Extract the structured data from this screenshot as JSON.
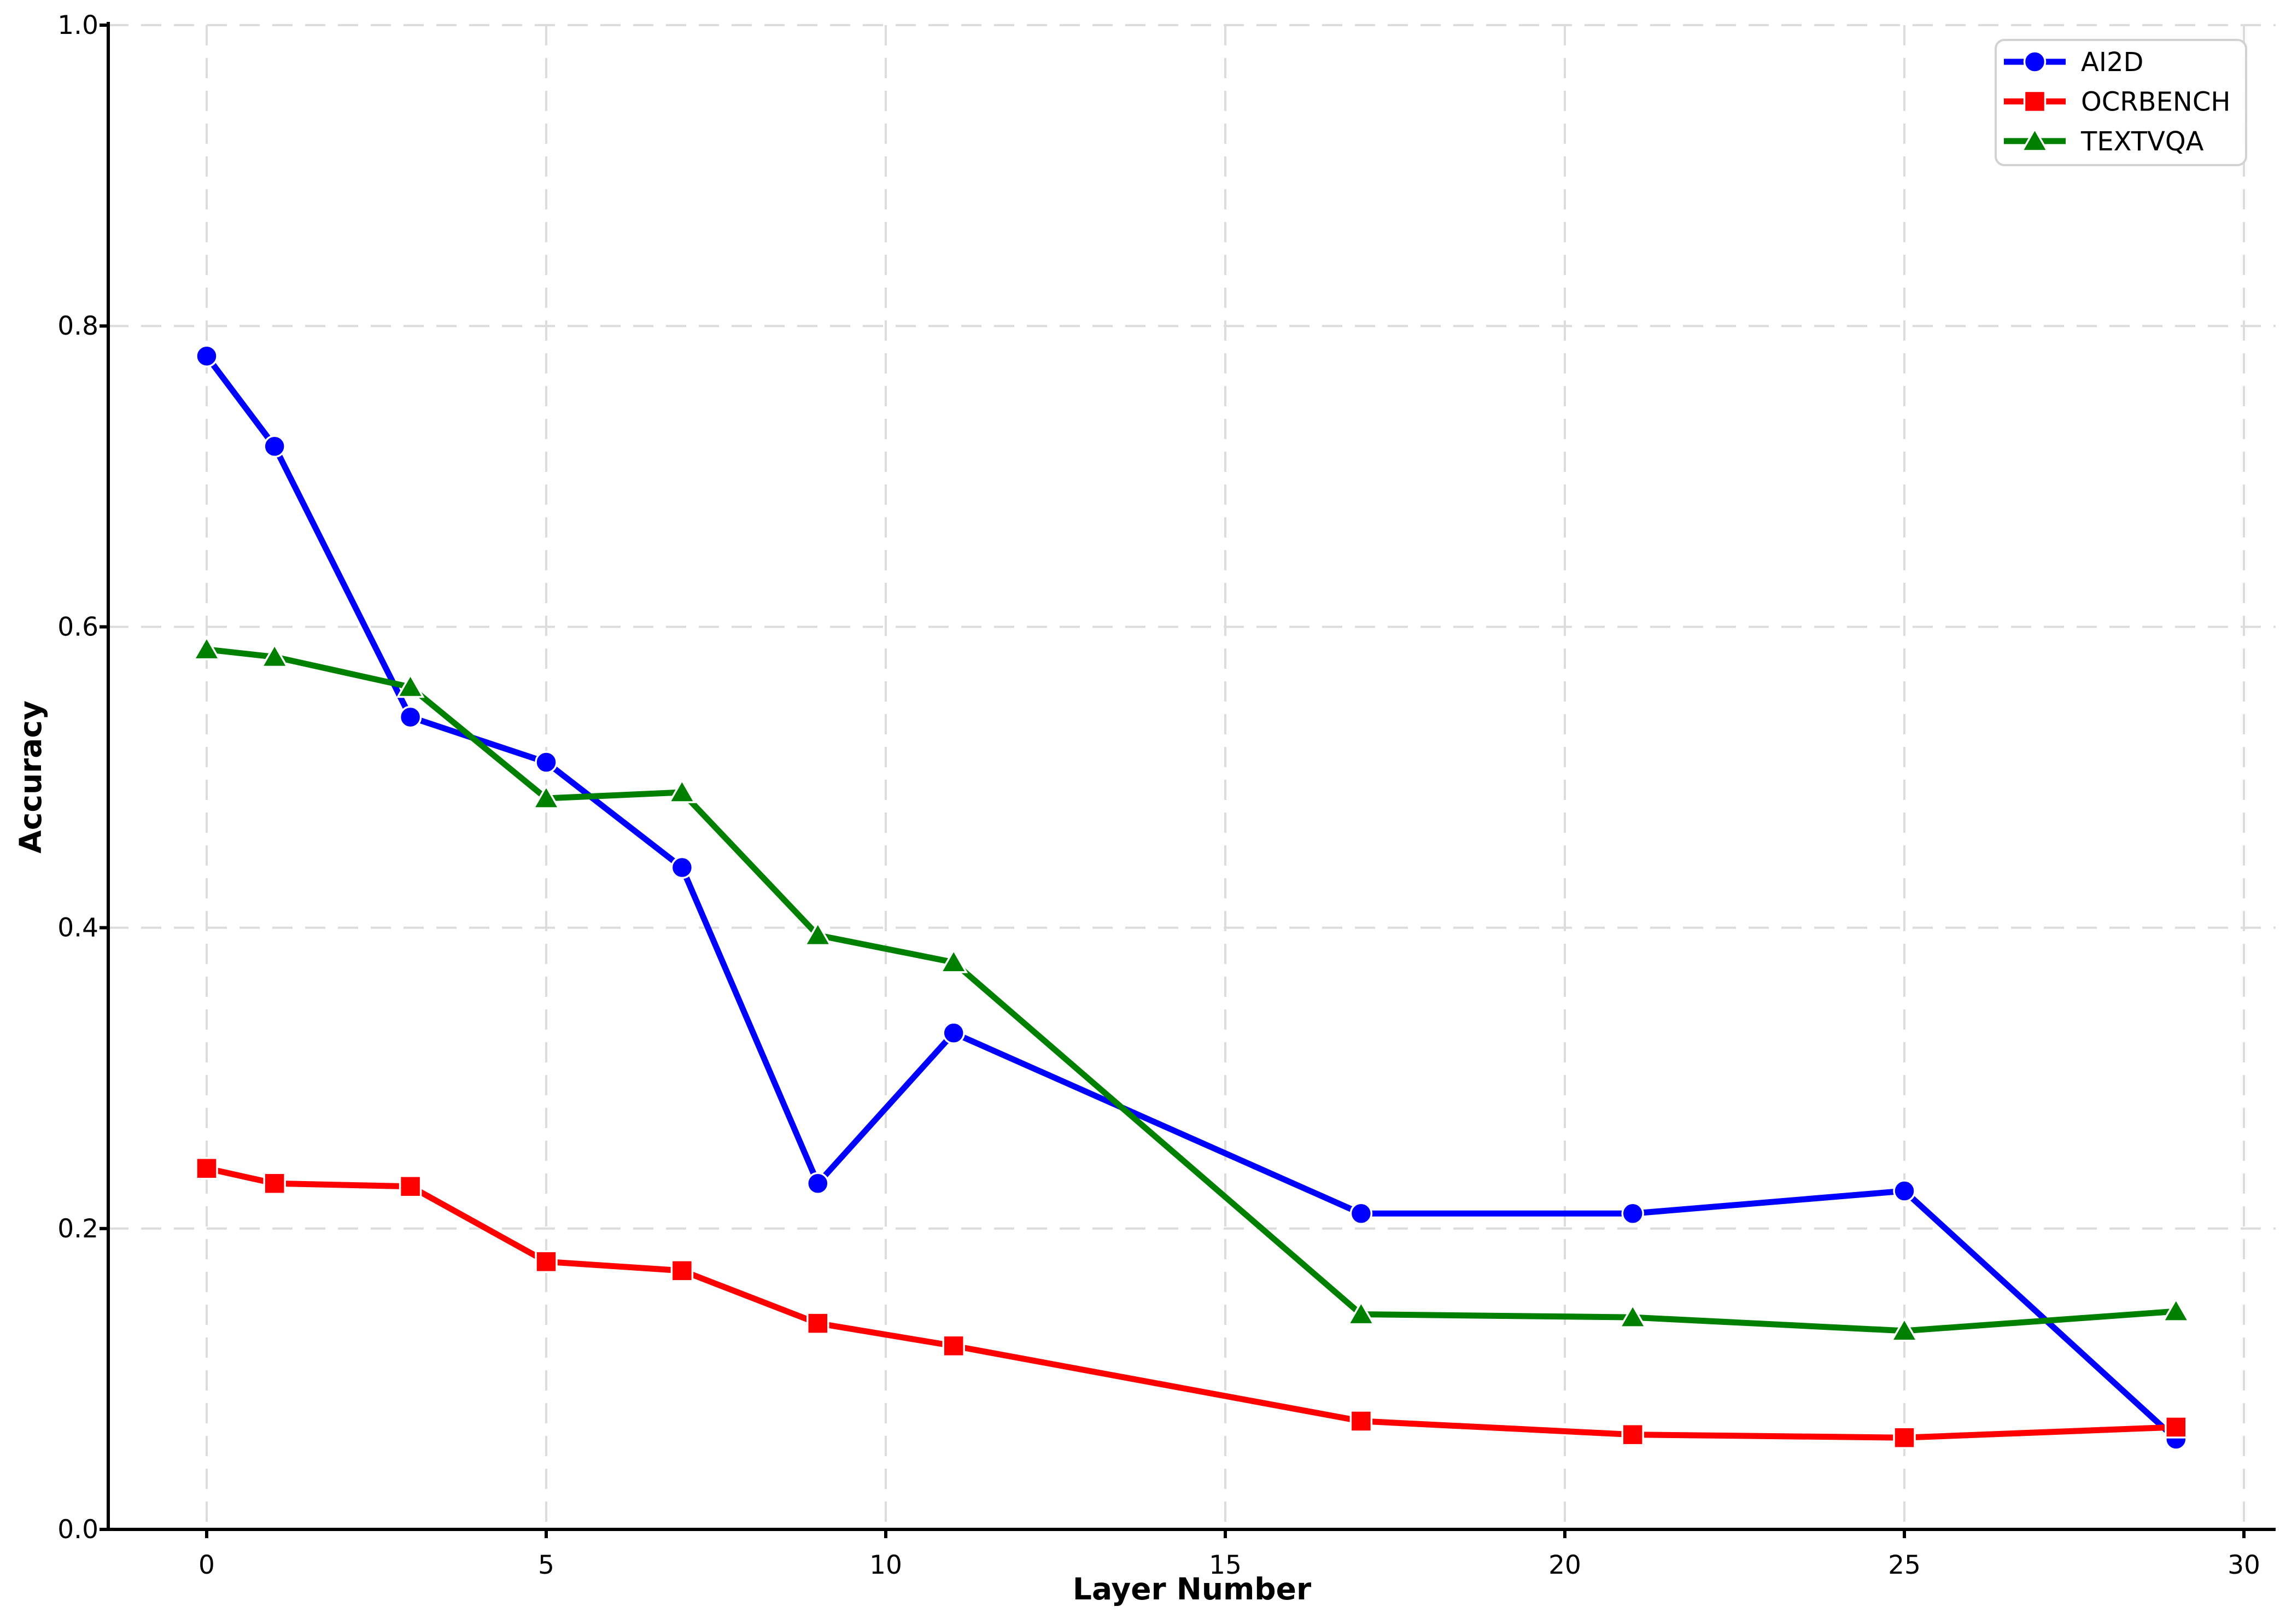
{
  "chart_data": {
    "type": "line",
    "title": "",
    "xlabel": "Layer Number",
    "ylabel": "Accuracy",
    "x": [
      0,
      1,
      3,
      5,
      7,
      9,
      11,
      17,
      21,
      25,
      29
    ],
    "series": [
      {
        "name": "AI2D",
        "color": "#0000ff",
        "marker": "circle",
        "values": [
          0.78,
          0.72,
          0.54,
          0.51,
          0.44,
          0.23,
          0.33,
          0.21,
          0.21,
          0.225,
          0.06
        ]
      },
      {
        "name": "OCRBENCH",
        "color": "#ff0000",
        "marker": "square",
        "values": [
          0.24,
          0.23,
          0.228,
          0.178,
          0.172,
          0.137,
          0.122,
          0.072,
          0.063,
          0.061,
          0.068
        ]
      },
      {
        "name": "TEXTVQA",
        "color": "#008000",
        "marker": "triangle",
        "values": [
          0.585,
          0.58,
          0.56,
          0.486,
          0.49,
          0.395,
          0.377,
          0.143,
          0.141,
          0.132,
          0.145
        ]
      }
    ],
    "xticks": [
      "0",
      "5",
      "10",
      "15",
      "20",
      "25",
      "30"
    ],
    "yticks": [
      "0.0",
      "0.2",
      "0.4",
      "0.6",
      "0.8",
      "1.0"
    ],
    "xlim": [
      -1.45,
      30.45
    ],
    "ylim": [
      0.0,
      1.0
    ],
    "grid": true,
    "legend_position": "upper right"
  },
  "colors": {
    "grid": "#dcdcdc",
    "spine": "#000000",
    "tick": "#000000",
    "legend_border": "#d2d2d2",
    "background": "#ffffff"
  }
}
